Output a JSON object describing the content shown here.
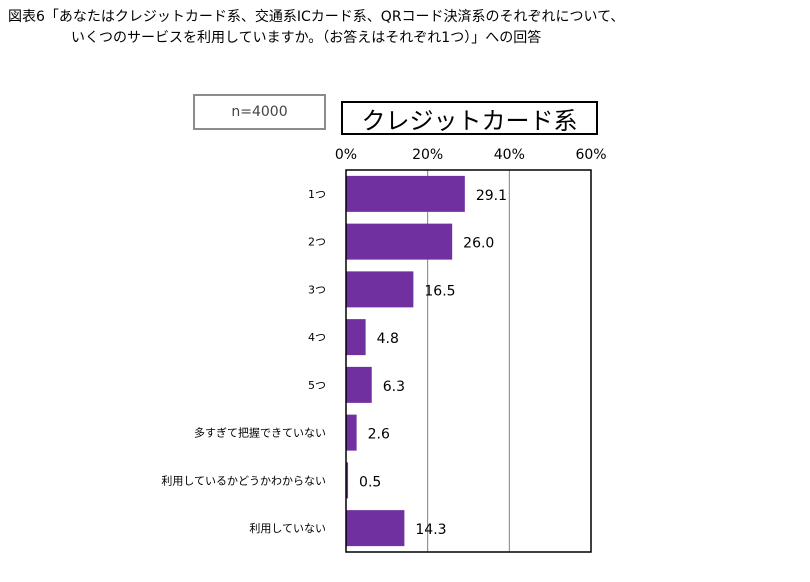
{
  "figure": {
    "title_line1": "図表6「あなたはクレジットカード系、交通系ICカード系、QRコード決済系のそれぞれについて、",
    "title_line2": "いくつのサービスを利用していますか。（お答えはそれぞれ1つ）」への回答",
    "sample_label": "n=4000",
    "category_label": "クレジットカード系"
  },
  "chart_data": {
    "type": "bar",
    "orientation": "horizontal",
    "title": "クレジットカード系",
    "categories": [
      "1つ",
      "2つ",
      "3つ",
      "4つ",
      "5つ",
      "多すぎて把握できていない",
      "利用しているかどうかわからない",
      "利用していない"
    ],
    "values": [
      29.1,
      26.0,
      16.5,
      4.8,
      6.3,
      2.6,
      0.5,
      14.3
    ],
    "value_labels": [
      "29.1",
      "26.0",
      "16.5",
      "4.8",
      "6.3",
      "2.6",
      "0.5",
      "14.3"
    ],
    "xlim": [
      0,
      60
    ],
    "ticks": [
      0,
      20,
      40,
      60
    ],
    "tick_labels": [
      "0%",
      "20%",
      "40%",
      "60%"
    ],
    "gridlines": true,
    "bar_color": "#7030a0",
    "xlabel": "",
    "ylabel": ""
  }
}
